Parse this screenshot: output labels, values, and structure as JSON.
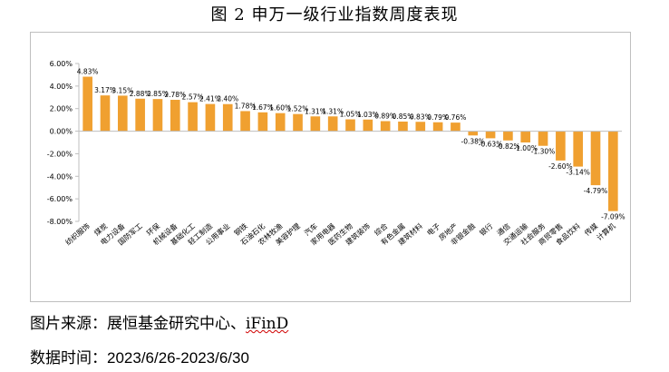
{
  "figure": {
    "title": "图 2 申万一级行业指数周度表现",
    "source_prefix": "图片来源：展恒基金研究中心、",
    "source_brand": "iFinD",
    "period_label": "数据时间：",
    "period_value": "2023/6/26-2023/6/30"
  },
  "colors": {
    "bar": "#f0a030",
    "axis": "#bfbfbf",
    "text": "#000000"
  },
  "chart_data": {
    "type": "bar",
    "title": "",
    "xlabel": "",
    "ylabel": "",
    "ylim": [
      -8,
      6
    ],
    "yticks": [
      6,
      4,
      2,
      0,
      -2,
      -4,
      -6,
      -8
    ],
    "ytick_labels": [
      "6.00%",
      "4.00%",
      "2.00%",
      "0.00%",
      "-2.00%",
      "-4.00%",
      "-6.00%",
      "-8.00%"
    ],
    "grid": false,
    "legend": "none",
    "categories": [
      "纺织服饰",
      "煤炭",
      "电力设备",
      "国防军工",
      "环保",
      "机械设备",
      "基础化工",
      "轻工制造",
      "公用事业",
      "钢铁",
      "石油石化",
      "农林牧渔",
      "美容护理",
      "汽车",
      "家用电器",
      "医药生物",
      "建筑装饰",
      "综合",
      "有色金属",
      "建筑材料",
      "电子",
      "房地产",
      "非银金融",
      "银行",
      "通信",
      "交通运输",
      "社会服务",
      "商贸零售",
      "食品饮料",
      "传媒",
      "计算机"
    ],
    "values": [
      4.83,
      3.17,
      3.15,
      2.88,
      2.85,
      2.78,
      2.57,
      2.41,
      2.4,
      1.78,
      1.67,
      1.6,
      1.52,
      1.31,
      1.31,
      1.05,
      1.03,
      0.89,
      0.85,
      0.83,
      0.79,
      0.76,
      -0.38,
      -0.63,
      -0.82,
      -1.0,
      -1.3,
      -2.6,
      -3.14,
      -4.79,
      -7.09
    ],
    "data_labels": [
      "4.83%",
      "3.17%",
      "3.15%",
      "2.88%",
      "2.85%",
      "2.78%",
      "2.57%",
      "2.41%",
      "2.40%",
      "1.78%",
      "1.67%",
      "1.60%",
      "1.52%",
      "1.31%",
      "1.31%",
      "1.05%",
      "1.03%",
      "0.89%",
      "0.85%",
      "0.83%",
      "0.79%",
      "0.76%",
      "-0.38%",
      "-0.63%",
      "-0.82%",
      "-1.00%",
      "-1.30%",
      "-2.60%",
      "-3.14%",
      "-4.79%",
      "-7.09%"
    ]
  }
}
